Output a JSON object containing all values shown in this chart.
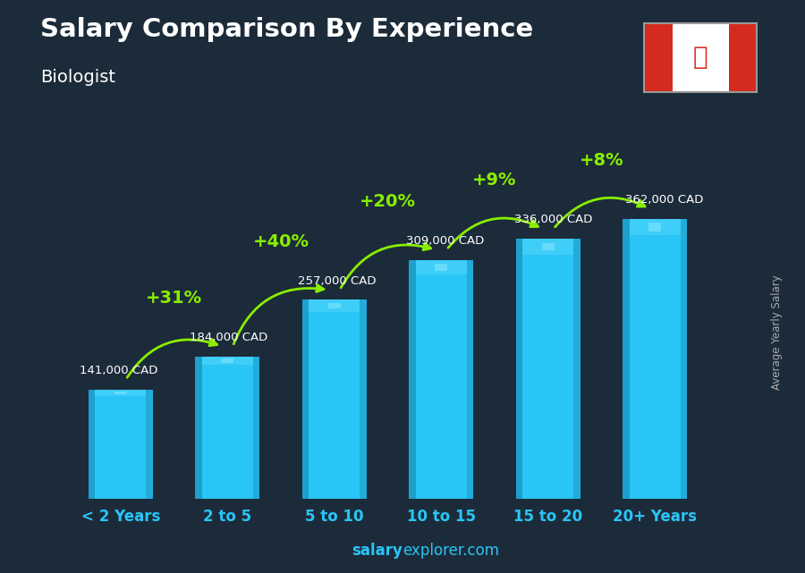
{
  "title": "Salary Comparison By Experience",
  "subtitle": "Biologist",
  "categories": [
    "< 2 Years",
    "2 to 5",
    "5 to 10",
    "10 to 15",
    "15 to 20",
    "20+ Years"
  ],
  "values": [
    141000,
    184000,
    257000,
    309000,
    336000,
    362000
  ],
  "labels": [
    "141,000 CAD",
    "184,000 CAD",
    "257,000 CAD",
    "309,000 CAD",
    "336,000 CAD",
    "362,000 CAD"
  ],
  "pct_changes": [
    "+31%",
    "+40%",
    "+20%",
    "+9%",
    "+8%"
  ],
  "bar_color": "#29c5f6",
  "bar_color_dark": "#1888b0",
  "bar_color_light": "#55d8f8",
  "bg_color": "#1c2b3a",
  "title_color": "#ffffff",
  "subtitle_color": "#ffffff",
  "label_color": "#ffffff",
  "pct_color": "#88ee00",
  "xlabel_color": "#29c5f6",
  "ylabel_text": "Average Yearly Salary",
  "footer_salary": "salary",
  "footer_rest": "explorer.com",
  "ylim": [
    0,
    430000
  ],
  "bar_width": 0.6
}
